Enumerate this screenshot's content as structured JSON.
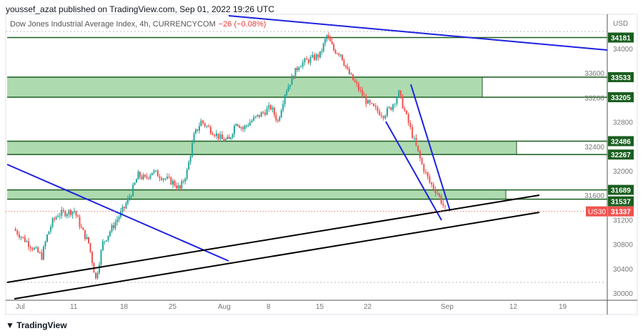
{
  "header": {
    "published": "youssef_azat published on TradingView.com, Sep 01, 2022 19:26 UTC"
  },
  "legend": {
    "symbol": "Dow Jones Industrial Average Index, 4h, CURRENCYCOM",
    "change": "−26 (−0.08%)"
  },
  "footer": {
    "logo": "TradingView"
  },
  "chart_data": {
    "type": "candlestick",
    "currency": "USD",
    "ylim": [
      29950,
      34300
    ],
    "y_ticks": [
      30000,
      30400,
      30800,
      31200,
      31600,
      32000,
      32400,
      32800,
      33200,
      33600,
      34000
    ],
    "x_ticks": [
      {
        "label": "Jul",
        "date": "2022-07-01"
      },
      {
        "label": "11",
        "date": "2022-07-11"
      },
      {
        "label": "18",
        "date": "2022-07-18"
      },
      {
        "label": "25",
        "date": "2022-07-25"
      },
      {
        "label": "Aug",
        "date": "2022-08-01"
      },
      {
        "label": "8",
        "date": "2022-08-08"
      },
      {
        "label": "15",
        "date": "2022-08-15"
      },
      {
        "label": "22",
        "date": "2022-08-22"
      },
      {
        "label": "Sep",
        "date": "2022-09-01"
      },
      {
        "label": "12",
        "date": "2022-09-12"
      },
      {
        "label": "19",
        "date": "2022-09-19"
      }
    ],
    "closes": [
      [
        "2022-06-30",
        31050
      ],
      [
        "2022-07-05",
        30600
      ],
      [
        "2022-07-06",
        30940
      ],
      [
        "2022-07-07",
        31170
      ],
      [
        "2022-07-08",
        31290
      ],
      [
        "2022-07-11",
        31350
      ],
      [
        "2022-07-12",
        31050
      ],
      [
        "2022-07-13",
        30820
      ],
      [
        "2022-07-14",
        30230
      ],
      [
        "2022-07-15",
        30820
      ],
      [
        "2022-07-18",
        31400
      ],
      [
        "2022-07-19",
        31640
      ],
      [
        "2022-07-20",
        31930
      ],
      [
        "2022-07-21",
        31870
      ],
      [
        "2022-07-22",
        31990
      ],
      [
        "2022-07-25",
        31810
      ],
      [
        "2022-07-26",
        31700
      ],
      [
        "2022-07-27",
        31990
      ],
      [
        "2022-07-28",
        32570
      ],
      [
        "2022-07-29",
        32810
      ],
      [
        "2022-08-01",
        32510
      ],
      [
        "2022-08-02",
        32500
      ],
      [
        "2022-08-03",
        32810
      ],
      [
        "2022-08-04",
        32690
      ],
      [
        "2022-08-05",
        32800
      ],
      [
        "2022-08-08",
        33040
      ],
      [
        "2022-08-09",
        32810
      ],
      [
        "2022-08-10",
        33270
      ],
      [
        "2022-08-11",
        33510
      ],
      [
        "2022-08-12",
        33740
      ],
      [
        "2022-08-15",
        33900
      ],
      [
        "2022-08-16",
        34210
      ],
      [
        "2022-08-17",
        33980
      ],
      [
        "2022-08-18",
        33920
      ],
      [
        "2022-08-19",
        33630
      ],
      [
        "2022-08-22",
        33100
      ],
      [
        "2022-08-23",
        33000
      ],
      [
        "2022-08-24",
        32920
      ],
      [
        "2022-08-25",
        33040
      ],
      [
        "2022-08-26",
        33270
      ],
      [
        "2022-08-29",
        32100
      ],
      [
        "2022-08-30",
        31810
      ],
      [
        "2022-08-31",
        31640
      ],
      [
        "2022-09-01",
        31370
      ]
    ],
    "levels": [
      34181,
      33533,
      33205,
      32486,
      32267,
      31689,
      31537
    ],
    "zones": [
      [
        33205,
        33533
      ],
      [
        32267,
        32486
      ],
      [
        31537,
        31689
      ]
    ],
    "last_price": {
      "symbol": "US30",
      "value": "31337"
    },
    "colors": {
      "up": "#26a69a",
      "down": "#ef5350",
      "zone": "#a5d6a7",
      "level": "#1b5e20",
      "trend_blue": "#1e22e0",
      "trend_black": "#000000"
    }
  }
}
